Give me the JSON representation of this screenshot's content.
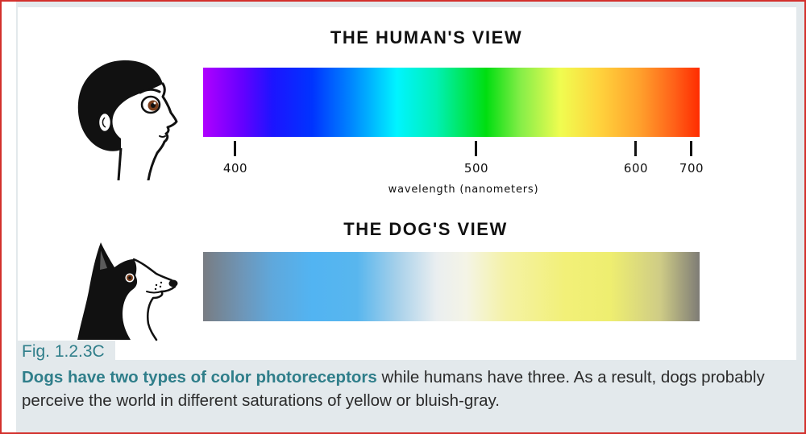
{
  "figure": {
    "human_view": {
      "title": "THE HUMAN'S VIEW",
      "icon": "human-head-icon"
    },
    "axis": {
      "ticks": [
        "400",
        "500",
        "600",
        "700"
      ],
      "label": "wavelength (nanometers)"
    },
    "dog_view": {
      "title": "THE DOG'S VIEW",
      "icon": "dog-head-icon"
    }
  },
  "caption": {
    "fig_label": "Fig. 1.2.3C",
    "emphasis": "Dogs have two types of color photoreceptors",
    "line1_rest": " while humans have three. As a result, dogs probably",
    "line2": "perceive the world in different saturations of yellow or bluish-gray."
  },
  "colors": {
    "frame_border": "#d3302c",
    "accent_teal": "#2f7e8a",
    "caption_background": "#e3e9ec",
    "body_text": "#2b2b2b",
    "iris_brown": "#7a3e1c"
  }
}
